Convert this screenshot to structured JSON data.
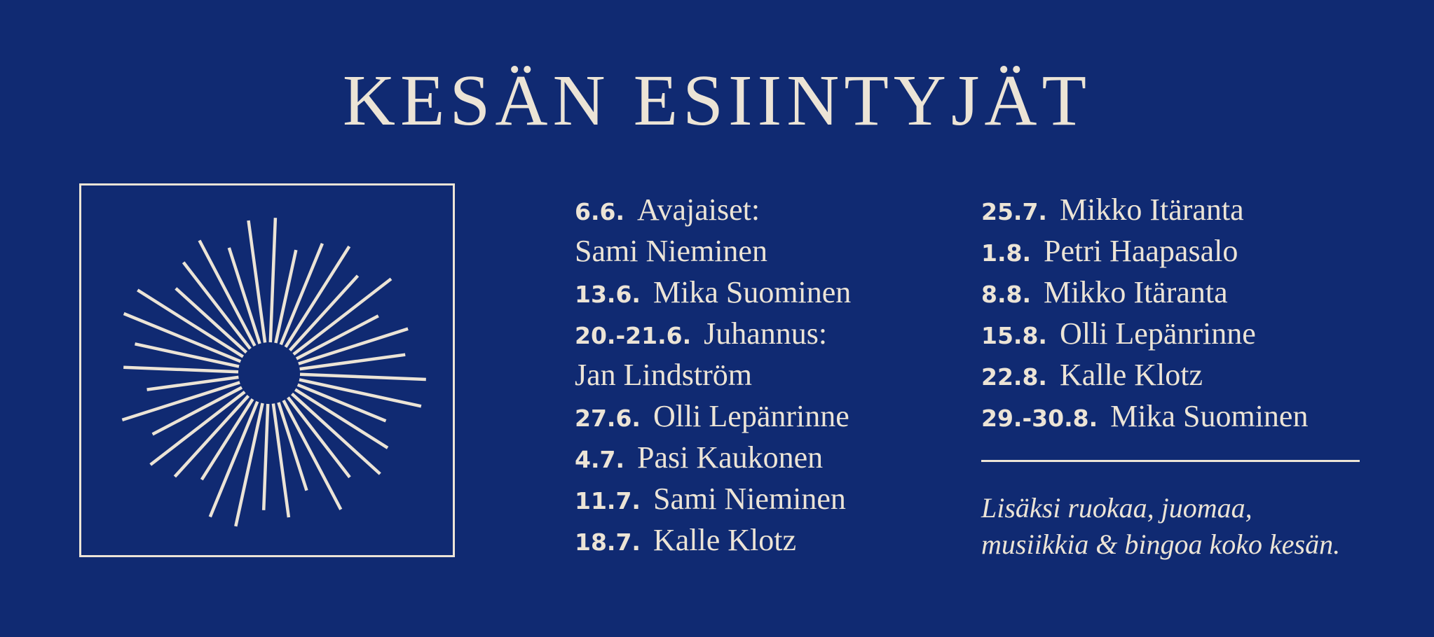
{
  "title": "KESÄN ESIINTYJÄT",
  "schedule_left": [
    {
      "date": "6.6.",
      "name": "Avajaiset:"
    },
    {
      "date": "",
      "name": "Sami Nieminen"
    },
    {
      "date": "13.6.",
      "name": "Mika Suominen"
    },
    {
      "date": "20.-21.6.",
      "name": "Juhannus:"
    },
    {
      "date": "",
      "name": "Jan Lindström"
    },
    {
      "date": "27.6.",
      "name": "Olli Lepänrinne"
    },
    {
      "date": "4.7.",
      "name": "Pasi Kaukonen"
    },
    {
      "date": "11.7.",
      "name": "Sami Nieminen"
    },
    {
      "date": "18.7.",
      "name": "Kalle Klotz"
    }
  ],
  "schedule_right": [
    {
      "date": "25.7.",
      "name": "Mikko Itäranta"
    },
    {
      "date": "1.8.",
      "name": "Petri Haapasalo"
    },
    {
      "date": "8.8.",
      "name": "Mikko Itäranta"
    },
    {
      "date": "15.8.",
      "name": "Olli Lepänrinne"
    },
    {
      "date": "22.8.",
      "name": "Kalle Klotz"
    },
    {
      "date": "29.-30.8.",
      "name": "Mika Suominen"
    }
  ],
  "note": {
    "line1": "Lisäksi ruokaa, juomaa,",
    "line2": "musiikkia & bingoa koko kesän."
  },
  "colors": {
    "background": "#102a72",
    "foreground": "#ece4d6"
  },
  "emblem_icon": "sunburst-icon"
}
